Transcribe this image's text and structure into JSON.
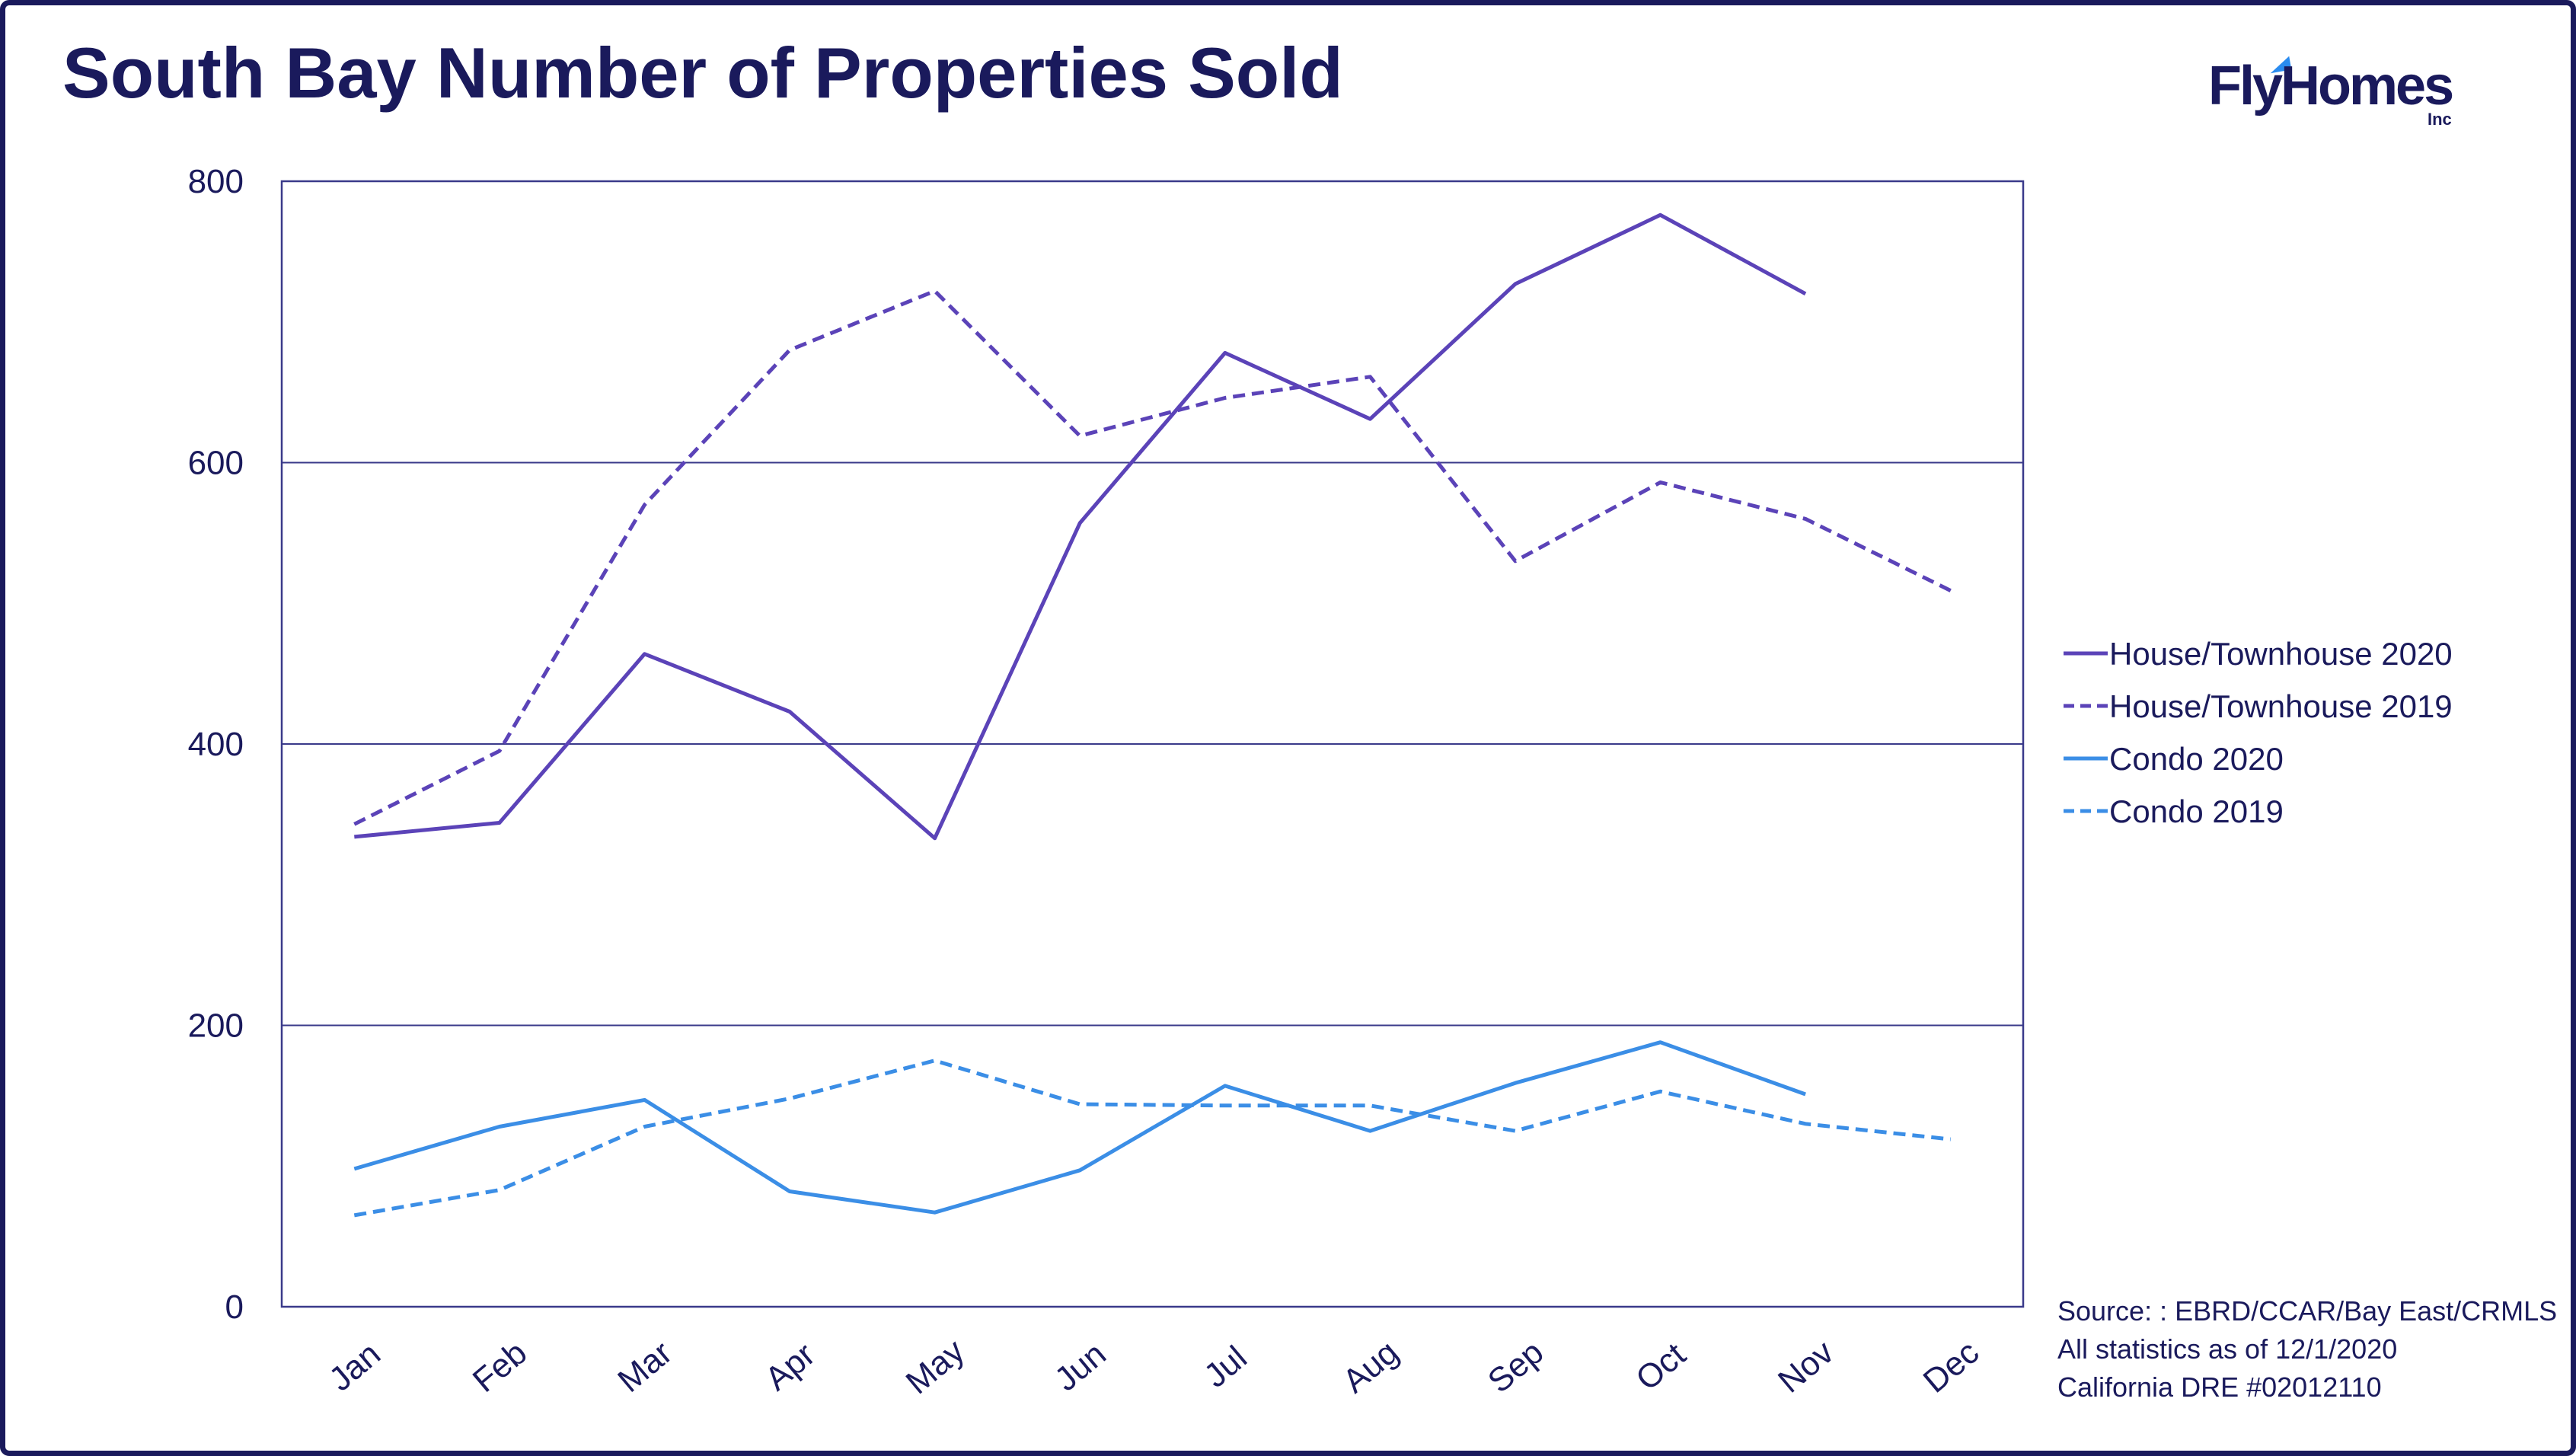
{
  "title": "South Bay Number of Properties Sold",
  "brand": {
    "name": "FlyHomes",
    "suffix": "Inc"
  },
  "source_lines": [
    "Source: : EBRD/CCAR/Bay East/CRMLS",
    "All statistics as of 12/1/2020",
    "California DRE #02012110"
  ],
  "colors": {
    "navy": "#1a1a5c",
    "purple": "#5b43b8",
    "blue": "#3b8ee6",
    "grid": "#3a3a8a"
  },
  "chart_data": {
    "type": "line",
    "title": "South Bay Number of Properties Sold",
    "xlabel": "",
    "ylabel": "",
    "categories": [
      "Jan",
      "Feb",
      "Mar",
      "Apr",
      "May",
      "Jun",
      "Jul",
      "Aug",
      "Sep",
      "Oct",
      "Nov",
      "Dec"
    ],
    "ylim": [
      0,
      800
    ],
    "yticks": [
      0,
      200,
      400,
      600,
      800
    ],
    "grid": true,
    "legend_position": "right",
    "series": [
      {
        "name": "House/Townhouse 2020",
        "color": "#5b43b8",
        "style": "solid",
        "values": [
          334,
          344,
          464,
          423,
          333,
          557,
          678,
          631,
          727,
          776,
          720,
          null
        ]
      },
      {
        "name": "House/Townhouse 2019",
        "color": "#5b43b8",
        "style": "dashed",
        "values": [
          343,
          395,
          570,
          680,
          722,
          619,
          646,
          661,
          530,
          586,
          560,
          509
        ]
      },
      {
        "name": "Condo 2020",
        "color": "#3b8ee6",
        "style": "solid",
        "values": [
          98,
          128,
          147,
          82,
          67,
          97,
          157,
          125,
          159,
          188,
          151,
          null
        ]
      },
      {
        "name": "Condo 2019",
        "color": "#3b8ee6",
        "style": "dashed",
        "values": [
          65,
          83,
          128,
          148,
          175,
          144,
          143,
          143,
          125,
          153,
          130,
          119
        ]
      }
    ]
  }
}
